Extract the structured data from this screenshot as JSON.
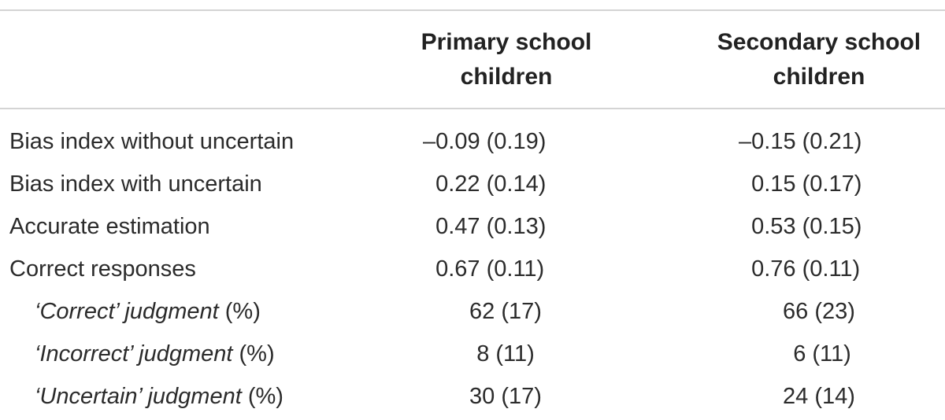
{
  "table": {
    "headers": {
      "col1_line1": "Primary school",
      "col1_line2": "children",
      "col2_line1": "Secondary school",
      "col2_line2": "children"
    },
    "rows": [
      {
        "label": "Bias index without uncertain",
        "primary": "–0.09 (0.19)",
        "secondary": "–0.15 (0.21)"
      },
      {
        "label": "Bias index with uncertain",
        "primary": "  0.22 (0.14)",
        "secondary": "  0.15 (0.17)"
      },
      {
        "label": "Accurate estimation",
        "primary": "  0.47 (0.13)",
        "secondary": "  0.53 (0.15)"
      },
      {
        "label": "Correct responses",
        "primary": "  0.67 (0.11)",
        "secondary": "  0.76 (0.11)"
      },
      {
        "label_italic": "‘Correct’ judgment",
        "label_suffix": " (%)",
        "primary": "62 (17)",
        "secondary": "66 (23)"
      },
      {
        "label_italic": "‘Incorrect’ judgment",
        "label_suffix": " (%)",
        "primary": "8 (11)",
        "secondary": " 6 (11)"
      },
      {
        "label_italic": "‘Uncertain’ judgment",
        "label_suffix": " (%)",
        "primary": "30 (17)",
        "secondary": "24 (14)"
      }
    ]
  }
}
